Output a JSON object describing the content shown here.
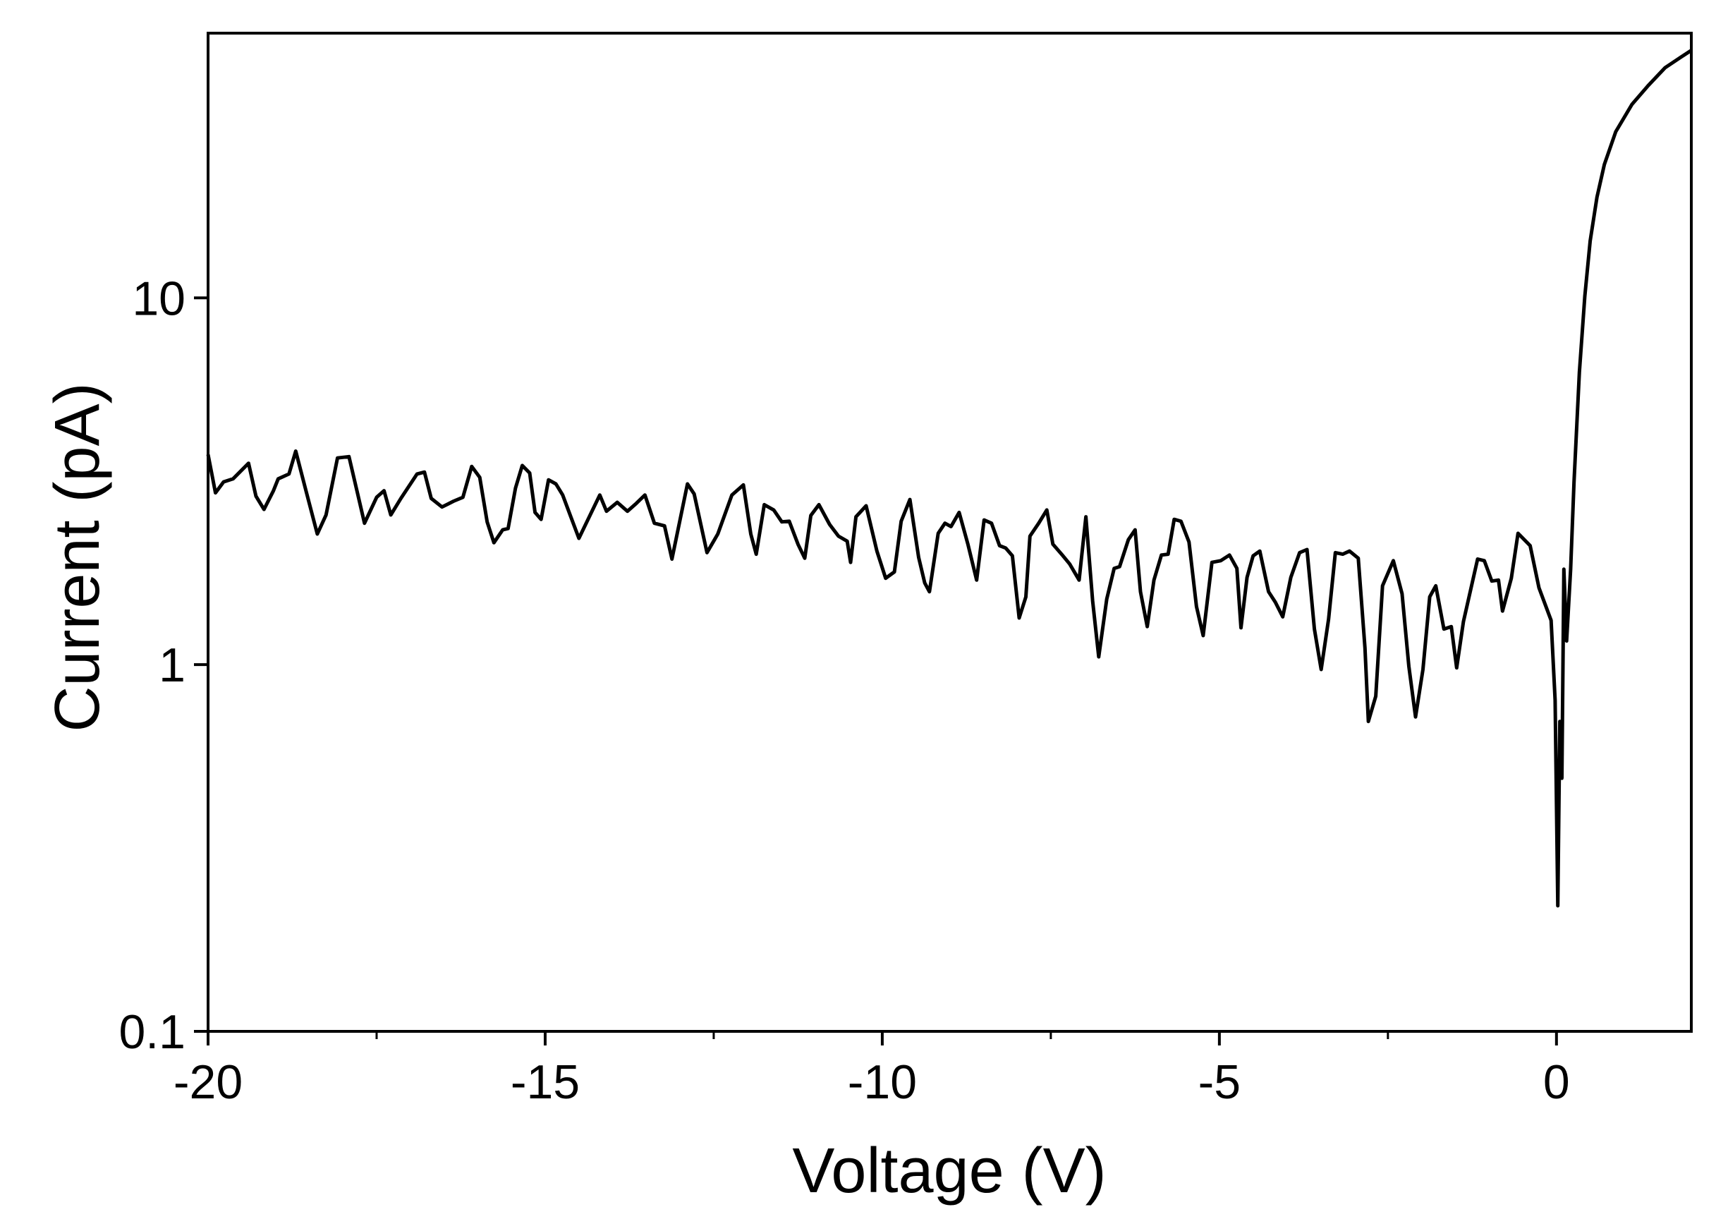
{
  "chart_data": {
    "type": "line",
    "xlabel": "Voltage (V)",
    "ylabel": "Current (pA)",
    "xlim": [
      -20,
      2
    ],
    "ylim": [
      0.1,
      52.7
    ],
    "xticks": [
      -20,
      -15,
      -10,
      -5,
      0
    ],
    "xminorticks": [
      -17.5,
      -12.5,
      -7.5,
      -2.5
    ],
    "yticks": [
      0.1,
      1,
      10
    ],
    "ylog": true,
    "grid": false,
    "series": [
      {
        "color": "#000000",
        "x": [
          -20,
          -19.89,
          -19.77,
          -19.63,
          -19.4,
          -19.29,
          -19.17,
          -19.03,
          -18.96,
          -18.8,
          -18.7,
          -18.54,
          -18.38,
          -18.25,
          -18.08,
          -17.91,
          -17.68,
          -17.5,
          -17.39,
          -17.29,
          -17.14,
          -16.9,
          -16.79,
          -16.69,
          -16.53,
          -16.36,
          -16.22,
          -16.09,
          -15.97,
          -15.86,
          -15.76,
          -15.63,
          -15.55,
          -15.44,
          -15.34,
          -15.23,
          -15.15,
          -15.06,
          -14.95,
          -14.84,
          -14.74,
          -14.63,
          -14.5,
          -14.19,
          -14.09,
          -13.93,
          -13.78,
          -13.65,
          -13.52,
          -13.38,
          -13.23,
          -13.12,
          -12.89,
          -12.79,
          -12.6,
          -12.44,
          -12.23,
          -12.06,
          -11.95,
          -11.87,
          -11.75,
          -11.61,
          -11.49,
          -11.38,
          -11.25,
          -11.15,
          -11.06,
          -10.94,
          -10.78,
          -10.65,
          -10.52,
          -10.47,
          -10.39,
          -10.24,
          -10.08,
          -9.95,
          -9.82,
          -9.72,
          -9.59,
          -9.46,
          -9.37,
          -9.3,
          -9.17,
          -9.07,
          -8.98,
          -8.86,
          -8.73,
          -8.6,
          -8.49,
          -8.38,
          -8.26,
          -8.17,
          -8.07,
          -7.97,
          -7.87,
          -7.81,
          -7.68,
          -7.56,
          -7.47,
          -7.32,
          -7.22,
          -7.08,
          -6.98,
          -6.88,
          -6.79,
          -6.67,
          -6.56,
          -6.48,
          -6.35,
          -6.25,
          -6.17,
          -6.07,
          -5.97,
          -5.86,
          -5.76,
          -5.67,
          -5.57,
          -5.45,
          -5.34,
          -5.24,
          -5.11,
          -4.98,
          -4.85,
          -4.74,
          -4.68,
          -4.59,
          -4.5,
          -4.4,
          -4.27,
          -4.17,
          -4.06,
          -3.94,
          -3.81,
          -3.7,
          -3.59,
          -3.49,
          -3.38,
          -3.28,
          -3.17,
          -3.07,
          -2.94,
          -2.84,
          -2.79,
          -2.68,
          -2.58,
          -2.42,
          -2.29,
          -2.19,
          -2.09,
          -1.98,
          -1.88,
          -1.79,
          -1.67,
          -1.56,
          -1.48,
          -1.38,
          -1.17,
          -1.07,
          -0.96,
          -0.86,
          -0.8,
          -0.67,
          -0.57,
          -0.39,
          -0.26,
          -0.08,
          -0.02,
          0.02,
          0.05,
          0.08,
          0.11,
          0.15,
          0.21,
          0.26,
          0.34,
          0.42,
          0.5,
          0.6,
          0.71,
          0.88,
          1.12,
          1.36,
          1.61,
          1.85,
          2.0
        ],
        "values": [
          3.74,
          2.94,
          3.15,
          3.21,
          3.54,
          2.88,
          2.65,
          2.98,
          3.21,
          3.31,
          3.82,
          2.94,
          2.27,
          2.56,
          3.66,
          3.69,
          2.43,
          2.86,
          2.98,
          2.56,
          2.84,
          3.31,
          3.35,
          2.84,
          2.69,
          2.79,
          2.86,
          3.47,
          3.24,
          2.45,
          2.15,
          2.33,
          2.35,
          3.03,
          3.49,
          3.33,
          2.6,
          2.49,
          3.19,
          3.11,
          2.9,
          2.56,
          2.21,
          2.9,
          2.62,
          2.77,
          2.62,
          2.75,
          2.9,
          2.43,
          2.39,
          1.94,
          3.11,
          2.92,
          2.02,
          2.27,
          2.9,
          3.09,
          2.27,
          2.0,
          2.73,
          2.64,
          2.45,
          2.46,
          2.13,
          1.95,
          2.55,
          2.73,
          2.41,
          2.24,
          2.17,
          1.9,
          2.53,
          2.71,
          2.04,
          1.72,
          1.79,
          2.46,
          2.82,
          1.96,
          1.67,
          1.58,
          2.28,
          2.43,
          2.38,
          2.6,
          2.13,
          1.7,
          2.48,
          2.43,
          2.11,
          2.08,
          1.98,
          1.34,
          1.53,
          2.24,
          2.43,
          2.64,
          2.13,
          1.98,
          1.88,
          1.7,
          2.53,
          1.49,
          1.05,
          1.51,
          1.83,
          1.85,
          2.19,
          2.33,
          1.58,
          1.27,
          1.7,
          1.99,
          2.0,
          2.49,
          2.46,
          2.16,
          1.44,
          1.2,
          1.9,
          1.92,
          1.99,
          1.83,
          1.26,
          1.73,
          1.98,
          2.04,
          1.58,
          1.48,
          1.35,
          1.73,
          2.02,
          2.06,
          1.25,
          0.97,
          1.33,
          2.02,
          2.0,
          2.04,
          1.95,
          1.11,
          0.7,
          0.82,
          1.64,
          1.92,
          1.56,
          0.99,
          0.72,
          0.97,
          1.53,
          1.64,
          1.25,
          1.27,
          0.98,
          1.31,
          1.94,
          1.92,
          1.69,
          1.7,
          1.4,
          1.72,
          2.28,
          2.11,
          1.62,
          1.32,
          0.8,
          0.22,
          0.7,
          0.49,
          1.82,
          1.16,
          1.82,
          3.15,
          6.27,
          10.1,
          14.3,
          18.8,
          23.1,
          28.4,
          33.7,
          37.9,
          42.4,
          45.4,
          47.3
        ]
      }
    ]
  }
}
